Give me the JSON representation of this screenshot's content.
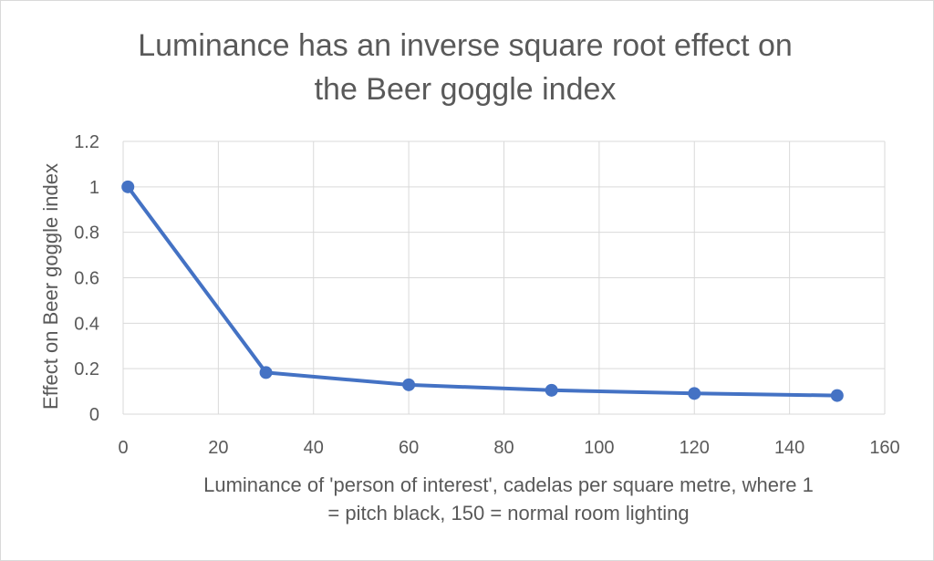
{
  "chart_data": {
    "type": "line",
    "title_lines": [
      "Luminance has an inverse square root effect on",
      "the Beer goggle index"
    ],
    "xlabel_lines": [
      "Luminance of 'person of interest', cadelas per square metre, where 1",
      "= pitch black, 150 = normal room lighting"
    ],
    "ylabel": "Effect on Beer goggle index",
    "xlim": [
      0,
      160
    ],
    "ylim": [
      0,
      1.2
    ],
    "x_ticks": [
      0,
      20,
      40,
      60,
      80,
      100,
      120,
      140,
      160
    ],
    "y_ticks": [
      0,
      0.2,
      0.4,
      0.6,
      0.8,
      1,
      1.2
    ],
    "grid": true,
    "legend": "none",
    "series": [
      {
        "color": "#4472c4",
        "x": [
          1,
          30,
          60,
          90,
          120,
          150
        ],
        "y": [
          1,
          0.183,
          0.129,
          0.105,
          0.091,
          0.082
        ]
      }
    ]
  }
}
